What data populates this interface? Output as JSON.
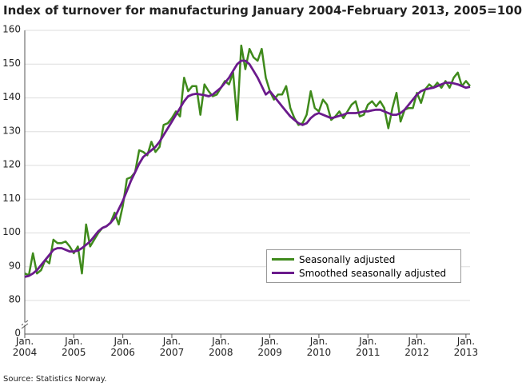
{
  "chart_data": {
    "type": "line",
    "title": "Index of turnover for manufacturing January 2004-February 2013, 2005=100",
    "source": "Source: Statistics Norway.",
    "x": [
      "2004-01",
      "2004-02",
      "2004-03",
      "2004-04",
      "2004-05",
      "2004-06",
      "2004-07",
      "2004-08",
      "2004-09",
      "2004-10",
      "2004-11",
      "2004-12",
      "2005-01",
      "2005-02",
      "2005-03",
      "2005-04",
      "2005-05",
      "2005-06",
      "2005-07",
      "2005-08",
      "2005-09",
      "2005-10",
      "2005-11",
      "2005-12",
      "2006-01",
      "2006-02",
      "2006-03",
      "2006-04",
      "2006-05",
      "2006-06",
      "2006-07",
      "2006-08",
      "2006-09",
      "2006-10",
      "2006-11",
      "2006-12",
      "2007-01",
      "2007-02",
      "2007-03",
      "2007-04",
      "2007-05",
      "2007-06",
      "2007-07",
      "2007-08",
      "2007-09",
      "2007-10",
      "2007-11",
      "2007-12",
      "2008-01",
      "2008-02",
      "2008-03",
      "2008-04",
      "2008-05",
      "2008-06",
      "2008-07",
      "2008-08",
      "2008-09",
      "2008-10",
      "2008-11",
      "2008-12",
      "2009-01",
      "2009-02",
      "2009-03",
      "2009-04",
      "2009-05",
      "2009-06",
      "2009-07",
      "2009-08",
      "2009-09",
      "2009-10",
      "2009-11",
      "2009-12",
      "2010-01",
      "2010-02",
      "2010-03",
      "2010-04",
      "2010-05",
      "2010-06",
      "2010-07",
      "2010-08",
      "2010-09",
      "2010-10",
      "2010-11",
      "2010-12",
      "2011-01",
      "2011-02",
      "2011-03",
      "2011-04",
      "2011-05",
      "2011-06",
      "2011-07",
      "2011-08",
      "2011-09",
      "2011-10",
      "2011-11",
      "2011-12",
      "2012-01",
      "2012-02",
      "2012-03",
      "2012-04",
      "2012-05",
      "2012-06",
      "2012-07",
      "2012-08",
      "2012-09",
      "2012-10",
      "2012-11",
      "2012-12",
      "2013-01",
      "2013-02"
    ],
    "series": [
      {
        "name": "Seasonally adjusted",
        "color": "#3f8a1c",
        "values": [
          88,
          87.5,
          94,
          88,
          89,
          92,
          91,
          98,
          97,
          97,
          97.5,
          96,
          94,
          96,
          88,
          102.5,
          96,
          98,
          100,
          101.5,
          102,
          103,
          106,
          102.5,
          108,
          116,
          116.5,
          118,
          124.5,
          124,
          123,
          127,
          124,
          125.5,
          132,
          132.5,
          134,
          136,
          134.5,
          146,
          142,
          143.5,
          143.5,
          135,
          144,
          142,
          140.5,
          141,
          143,
          145,
          144,
          147.5,
          133.5,
          155.5,
          148.5,
          154.5,
          152,
          151,
          154.5,
          146,
          142,
          139.5,
          141,
          141,
          143.5,
          137,
          134,
          132,
          132.5,
          135,
          142,
          137,
          136,
          139.5,
          138,
          133.5,
          134.5,
          136,
          134,
          136,
          138,
          139,
          134.5,
          135,
          138,
          139,
          137.5,
          139,
          137,
          131,
          137,
          141.5,
          133,
          136.5,
          137,
          137,
          141.5,
          138.5,
          142.5,
          144,
          143,
          144.5,
          143,
          145,
          143,
          146,
          147.5,
          143.5,
          145,
          143.5
        ]
      },
      {
        "name": "Smoothed seasonally adjusted",
        "color": "#6b1a8c",
        "values": [
          87,
          87.3,
          88,
          89,
          90.5,
          92,
          93.5,
          95,
          95.5,
          95.5,
          95,
          94.5,
          94.5,
          94.8,
          95.5,
          96.5,
          97.5,
          99,
          100.5,
          101.5,
          102,
          103,
          104.5,
          107,
          109.5,
          112.5,
          115.5,
          118,
          120.5,
          122.5,
          123.5,
          124.5,
          125.5,
          127,
          129,
          131,
          133,
          135,
          137,
          139,
          140.5,
          141,
          141.2,
          141,
          140.8,
          140.5,
          141,
          142,
          143,
          144.5,
          146,
          148,
          150,
          151,
          151,
          150,
          148,
          146,
          143.5,
          141,
          142,
          140.5,
          139,
          137.5,
          136,
          134.5,
          133.5,
          132.5,
          132,
          132.5,
          134,
          135,
          135.5,
          135,
          134.5,
          134,
          134.3,
          134.7,
          135,
          135.5,
          135.5,
          135.5,
          135.7,
          136,
          136,
          136.3,
          136.5,
          136.5,
          136,
          135.5,
          135,
          135,
          135.5,
          136.5,
          138,
          139.5,
          141,
          142,
          142.5,
          142.8,
          143,
          143.5,
          144,
          144.5,
          144.5,
          144.3,
          144,
          143.5,
          143,
          143.3
        ]
      }
    ],
    "ylim": [
      0,
      160
    ],
    "axis_break": [
      0,
      80
    ],
    "yticks": [
      0,
      80,
      90,
      100,
      110,
      120,
      130,
      140,
      150,
      160
    ],
    "xticks": [
      {
        "value": "2004-01",
        "label": "Jan. 2004"
      },
      {
        "value": "2005-01",
        "label": "Jan. 2005"
      },
      {
        "value": "2006-01",
        "label": "Jan. 2006"
      },
      {
        "value": "2007-01",
        "label": "Jan. 2007"
      },
      {
        "value": "2008-01",
        "label": "Jan. 2008"
      },
      {
        "value": "2009-01",
        "label": "Jan. 2009"
      },
      {
        "value": "2010-01",
        "label": "Jan. 2010"
      },
      {
        "value": "2011-01",
        "label": "Jan. 2011"
      },
      {
        "value": "2012-01",
        "label": "Jan. 2012"
      },
      {
        "value": "2013-01",
        "label": "Jan. 2013"
      }
    ],
    "grid": true,
    "legend": "lower right"
  }
}
